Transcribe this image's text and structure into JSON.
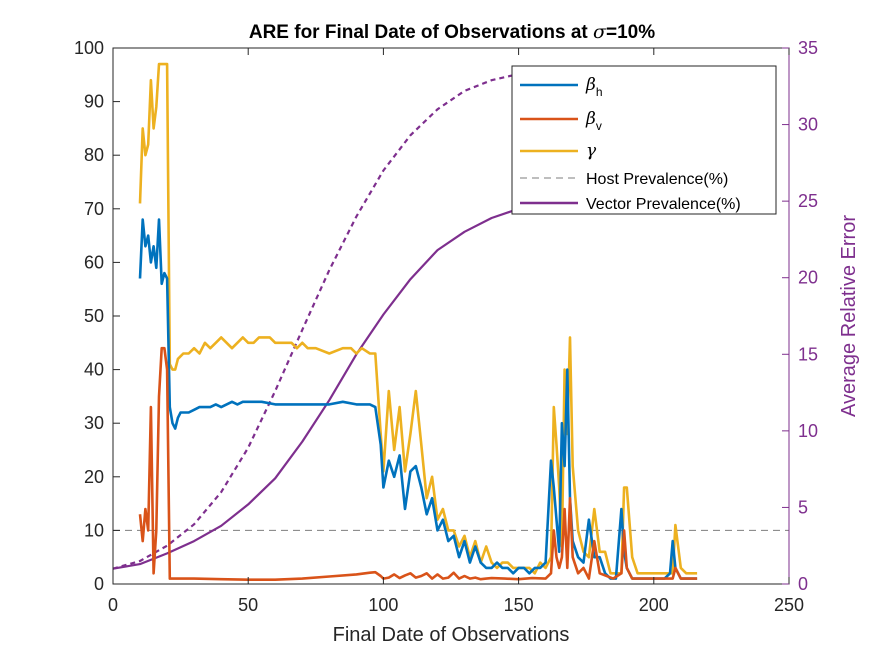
{
  "chart_data": {
    "type": "line",
    "title": "ARE for Final Date of Observations at σ=10%",
    "title_parts": {
      "prefix": "ARE for Final Date of Observations at ",
      "symbol": "σ",
      "suffix": "=10%"
    },
    "xlabel": "Final Date of Observations",
    "ylabel_right": "Average Relative Error",
    "xlim": [
      0,
      250
    ],
    "ylim_left": [
      0,
      100
    ],
    "ylim_right": [
      0,
      35
    ],
    "x_ticks": [
      "0",
      "50",
      "100",
      "150",
      "200",
      "250"
    ],
    "y_ticks_left": [
      "0",
      "10",
      "20",
      "30",
      "40",
      "50",
      "60",
      "70",
      "80",
      "90",
      "100"
    ],
    "y_ticks_right": [
      "0",
      "5",
      "10",
      "15",
      "20",
      "25",
      "30",
      "35"
    ],
    "grid": false,
    "legend_position": "top-right",
    "colors": {
      "beta_h": "#0072bd",
      "beta_v": "#d95319",
      "gamma": "#edb120",
      "host": "#7e7e7e",
      "vector": "#7e2f8e",
      "right_axis": "#7e2f8e"
    },
    "legend": [
      {
        "symbol": "β",
        "sub": "h",
        "label": "",
        "color": "#0072bd",
        "style": "solid"
      },
      {
        "symbol": "β",
        "sub": "v",
        "label": "",
        "color": "#d95319",
        "style": "solid"
      },
      {
        "symbol": "γ",
        "sub": "",
        "label": "",
        "color": "#edb120",
        "style": "solid"
      },
      {
        "symbol": "",
        "sub": "",
        "label": "Host Prevalence(%)",
        "color": "#7e7e7e",
        "style": "dash"
      },
      {
        "symbol": "",
        "sub": "",
        "label": "Vector Prevalence(%)",
        "color": "#7e2f8e",
        "style": "solid"
      }
    ],
    "series": [
      {
        "name": "β_h",
        "axis": "left",
        "x": [
          10,
          11,
          12,
          13,
          14,
          15,
          16,
          17,
          18,
          19,
          20,
          21,
          22,
          23,
          24,
          25,
          26,
          28,
          30,
          32,
          34,
          36,
          38,
          40,
          42,
          44,
          46,
          48,
          50,
          55,
          60,
          65,
          70,
          75,
          80,
          85,
          90,
          95,
          97,
          99,
          100,
          102,
          104,
          106,
          108,
          110,
          112,
          114,
          116,
          118,
          120,
          122,
          124,
          126,
          128,
          130,
          132,
          134,
          136,
          138,
          140,
          142,
          144,
          146,
          148,
          150,
          152,
          154,
          156,
          158,
          160,
          162,
          163,
          164,
          165,
          166,
          167,
          168,
          169,
          170,
          172,
          174,
          176,
          178,
          180,
          182,
          184,
          186,
          188,
          189,
          190,
          192,
          194,
          196,
          198,
          200,
          202,
          204,
          206,
          207,
          208,
          210,
          212,
          214,
          216
        ],
        "y": [
          57,
          68,
          63,
          65,
          60,
          63,
          59,
          68,
          56,
          58,
          57,
          33,
          30,
          29,
          31,
          32,
          32,
          32,
          32.5,
          33,
          33,
          33,
          33.5,
          33,
          33.5,
          34,
          33.5,
          34,
          34,
          34,
          33.5,
          33.5,
          33.5,
          33.5,
          33.5,
          34,
          33.5,
          33.5,
          33,
          26,
          18,
          23,
          20,
          24,
          14,
          21,
          22,
          18,
          13,
          16,
          10,
          12,
          8,
          9,
          5,
          8,
          4,
          7,
          4,
          3,
          3,
          4,
          3,
          3,
          2,
          3,
          3,
          2,
          3,
          3,
          4,
          23,
          18,
          12,
          6,
          30,
          22,
          40,
          16,
          8,
          5,
          4,
          12,
          5,
          5,
          2,
          1,
          1,
          14,
          6,
          3,
          1,
          1,
          1,
          1,
          1,
          1,
          1,
          2,
          8,
          3,
          1,
          1,
          1,
          1
        ]
      },
      {
        "name": "β_v",
        "axis": "left",
        "x": [
          10,
          11,
          12,
          13,
          14,
          15,
          16,
          17,
          18,
          19,
          20,
          21,
          22,
          23,
          25,
          30,
          40,
          50,
          60,
          70,
          80,
          90,
          95,
          97,
          99,
          100,
          102,
          104,
          106,
          108,
          110,
          112,
          114,
          116,
          118,
          120,
          122,
          124,
          126,
          128,
          130,
          132,
          134,
          136,
          138,
          140,
          145,
          150,
          155,
          160,
          162,
          163,
          164,
          165,
          166,
          167,
          168,
          169,
          170,
          172,
          174,
          176,
          178,
          180,
          185,
          188,
          189,
          190,
          192,
          195,
          200,
          205,
          207,
          208,
          210,
          215,
          216
        ],
        "y": [
          13,
          8,
          14,
          10,
          33,
          2,
          10,
          35,
          44,
          44,
          40,
          1,
          1,
          1,
          1,
          1,
          0.9,
          0.8,
          0.8,
          1,
          1.4,
          1.8,
          2.1,
          2.2,
          1.5,
          1,
          1.2,
          1.8,
          1.1,
          1.6,
          2,
          1.2,
          1.5,
          2,
          1,
          1.8,
          1,
          1.2,
          2.1,
          1,
          1.5,
          1,
          1.2,
          0.9,
          1,
          1.1,
          1,
          0.9,
          1.1,
          1,
          2,
          10,
          5,
          3,
          5,
          14,
          3,
          16,
          5,
          2,
          3,
          1,
          8,
          2,
          1,
          2,
          10,
          3,
          1,
          1,
          1,
          1,
          1,
          3,
          1,
          1,
          1
        ]
      },
      {
        "name": "γ",
        "axis": "left",
        "x": [
          10,
          11,
          12,
          13,
          14,
          15,
          16,
          17,
          18,
          19,
          20,
          21,
          22,
          23,
          24,
          26,
          28,
          30,
          32,
          34,
          36,
          38,
          40,
          42,
          44,
          46,
          48,
          50,
          52,
          54,
          56,
          58,
          60,
          62,
          64,
          66,
          68,
          70,
          72,
          75,
          80,
          85,
          88,
          90,
          92,
          95,
          97,
          99,
          100,
          102,
          104,
          106,
          108,
          110,
          112,
          114,
          116,
          118,
          120,
          122,
          124,
          126,
          128,
          130,
          132,
          134,
          136,
          138,
          140,
          142,
          144,
          146,
          148,
          150,
          152,
          154,
          156,
          158,
          160,
          162,
          163,
          164,
          165,
          166,
          167,
          168,
          169,
          170,
          172,
          174,
          176,
          178,
          180,
          182,
          184,
          186,
          188,
          189,
          190,
          192,
          194,
          196,
          198,
          200,
          202,
          204,
          206,
          207,
          208,
          210,
          212,
          214,
          216
        ],
        "y": [
          71,
          85,
          80,
          82,
          94,
          85,
          89,
          97,
          97,
          97,
          97,
          41,
          40,
          40,
          42,
          43,
          43,
          44,
          43,
          45,
          44,
          45,
          46,
          45,
          44,
          45,
          46,
          45,
          45,
          46,
          46,
          46,
          45,
          45,
          45,
          45,
          44,
          45,
          44,
          44,
          43,
          44,
          44,
          43,
          44,
          43,
          43,
          28,
          21,
          36,
          25,
          33,
          21,
          28,
          36,
          26,
          16,
          20,
          12,
          14,
          10,
          10,
          7,
          9,
          5,
          8,
          4,
          7,
          4,
          3,
          4,
          4,
          3,
          3,
          3,
          3,
          2,
          4,
          3,
          5,
          33,
          26,
          18,
          7,
          40,
          28,
          46,
          22,
          10,
          6,
          5,
          14,
          6,
          6,
          2,
          2,
          2,
          18,
          18,
          5,
          2,
          2,
          2,
          2,
          2,
          2,
          2,
          2,
          11,
          3,
          2,
          2,
          2
        ]
      },
      {
        "name": "Host Prevalence(%)",
        "axis": "left",
        "x": [
          0,
          250
        ],
        "y": [
          10,
          10
        ]
      },
      {
        "name": "Vector Prevalence(%) (dashed)",
        "axis": "right",
        "x": [
          0,
          10,
          20,
          30,
          40,
          50,
          60,
          70,
          80,
          90,
          100,
          110,
          120,
          130,
          140,
          150,
          160
        ],
        "y": [
          1,
          1.5,
          2.5,
          3.9,
          6,
          8.9,
          12.6,
          16.6,
          20.5,
          24,
          27,
          29.3,
          31,
          32.2,
          32.9,
          33.3,
          33.6
        ]
      },
      {
        "name": "Vector Prevalence(%)",
        "axis": "right",
        "x": [
          0,
          10,
          20,
          30,
          40,
          50,
          60,
          70,
          80,
          90,
          100,
          110,
          120,
          130,
          140,
          150,
          160,
          170,
          180,
          190,
          200,
          210,
          220
        ],
        "y": [
          1,
          1.3,
          2,
          2.8,
          3.8,
          5.2,
          6.9,
          9.3,
          12,
          15,
          17.6,
          19.9,
          21.8,
          23,
          23.9,
          24.5,
          24.9,
          25.1,
          25.2,
          25.3,
          25.3,
          25.3,
          25.3
        ]
      }
    ]
  }
}
